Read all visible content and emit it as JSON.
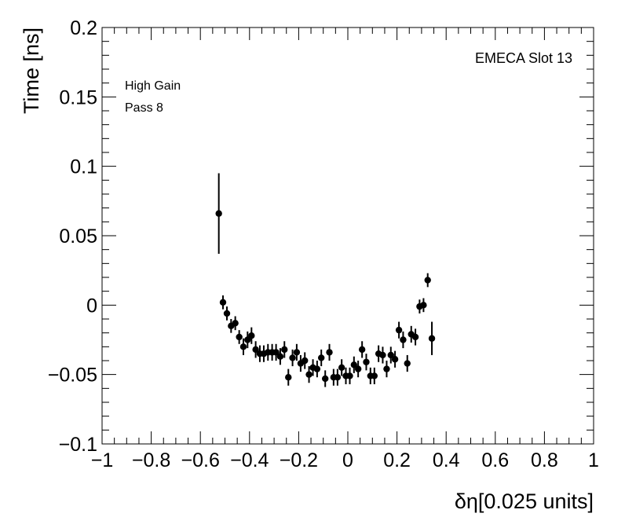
{
  "chart_data": {
    "type": "scatter",
    "title": "",
    "xlabel": "δη[0.025 units]",
    "ylabel": "Time [ns]",
    "xlim": [
      -1,
      1
    ],
    "ylim": [
      -0.1,
      0.2
    ],
    "grid": false,
    "x_ticks": [
      "−1",
      "−0.8",
      "−0.6",
      "−0.4",
      "−0.2",
      "0",
      "0.2",
      "0.4",
      "0.6",
      "0.8",
      "1"
    ],
    "y_ticks": [
      "−0.1",
      "−0.05",
      "0",
      "0.05",
      "0.1",
      "0.15",
      "0.2"
    ],
    "annotations": [
      "EMECA Slot 13",
      "High Gain",
      "Pass 8"
    ],
    "points": [
      {
        "x": -0.525,
        "y": 0.066,
        "err": 0.029
      },
      {
        "x": -0.508,
        "y": 0.002,
        "err": 0.005
      },
      {
        "x": -0.492,
        "y": -0.006,
        "err": 0.005
      },
      {
        "x": -0.475,
        "y": -0.015,
        "err": 0.005
      },
      {
        "x": -0.458,
        "y": -0.013,
        "err": 0.005
      },
      {
        "x": -0.442,
        "y": -0.023,
        "err": 0.005
      },
      {
        "x": -0.425,
        "y": -0.03,
        "err": 0.006
      },
      {
        "x": -0.408,
        "y": -0.025,
        "err": 0.006
      },
      {
        "x": -0.392,
        "y": -0.022,
        "err": 0.006
      },
      {
        "x": -0.375,
        "y": -0.032,
        "err": 0.006
      },
      {
        "x": -0.358,
        "y": -0.035,
        "err": 0.006
      },
      {
        "x": -0.342,
        "y": -0.035,
        "err": 0.006
      },
      {
        "x": -0.325,
        "y": -0.034,
        "err": 0.006
      },
      {
        "x": -0.308,
        "y": -0.034,
        "err": 0.006
      },
      {
        "x": -0.292,
        "y": -0.034,
        "err": 0.006
      },
      {
        "x": -0.275,
        "y": -0.037,
        "err": 0.006
      },
      {
        "x": -0.258,
        "y": -0.032,
        "err": 0.006
      },
      {
        "x": -0.242,
        "y": -0.052,
        "err": 0.006
      },
      {
        "x": -0.225,
        "y": -0.038,
        "err": 0.006
      },
      {
        "x": -0.208,
        "y": -0.034,
        "err": 0.006
      },
      {
        "x": -0.192,
        "y": -0.042,
        "err": 0.006
      },
      {
        "x": -0.175,
        "y": -0.04,
        "err": 0.006
      },
      {
        "x": -0.158,
        "y": -0.05,
        "err": 0.006
      },
      {
        "x": -0.142,
        "y": -0.045,
        "err": 0.006
      },
      {
        "x": -0.125,
        "y": -0.046,
        "err": 0.006
      },
      {
        "x": -0.108,
        "y": -0.038,
        "err": 0.006
      },
      {
        "x": -0.092,
        "y": -0.053,
        "err": 0.006
      },
      {
        "x": -0.075,
        "y": -0.034,
        "err": 0.006
      },
      {
        "x": -0.058,
        "y": -0.052,
        "err": 0.006
      },
      {
        "x": -0.042,
        "y": -0.052,
        "err": 0.006
      },
      {
        "x": -0.025,
        "y": -0.045,
        "err": 0.006
      },
      {
        "x": -0.008,
        "y": -0.051,
        "err": 0.006
      },
      {
        "x": 0.008,
        "y": -0.051,
        "err": 0.006
      },
      {
        "x": 0.025,
        "y": -0.043,
        "err": 0.006
      },
      {
        "x": 0.042,
        "y": -0.046,
        "err": 0.006
      },
      {
        "x": 0.058,
        "y": -0.032,
        "err": 0.006
      },
      {
        "x": 0.075,
        "y": -0.041,
        "err": 0.006
      },
      {
        "x": 0.092,
        "y": -0.051,
        "err": 0.006
      },
      {
        "x": 0.108,
        "y": -0.051,
        "err": 0.006
      },
      {
        "x": 0.125,
        "y": -0.035,
        "err": 0.006
      },
      {
        "x": 0.142,
        "y": -0.036,
        "err": 0.006
      },
      {
        "x": 0.158,
        "y": -0.046,
        "err": 0.006
      },
      {
        "x": 0.175,
        "y": -0.036,
        "err": 0.006
      },
      {
        "x": 0.192,
        "y": -0.039,
        "err": 0.006
      },
      {
        "x": 0.208,
        "y": -0.018,
        "err": 0.006
      },
      {
        "x": 0.225,
        "y": -0.025,
        "err": 0.006
      },
      {
        "x": 0.242,
        "y": -0.042,
        "err": 0.006
      },
      {
        "x": 0.258,
        "y": -0.021,
        "err": 0.006
      },
      {
        "x": 0.275,
        "y": -0.023,
        "err": 0.006
      },
      {
        "x": 0.292,
        "y": -0.001,
        "err": 0.005
      },
      {
        "x": 0.308,
        "y": 0.0,
        "err": 0.005
      },
      {
        "x": 0.325,
        "y": 0.018,
        "err": 0.005
      },
      {
        "x": 0.342,
        "y": -0.024,
        "err": 0.012
      }
    ]
  }
}
